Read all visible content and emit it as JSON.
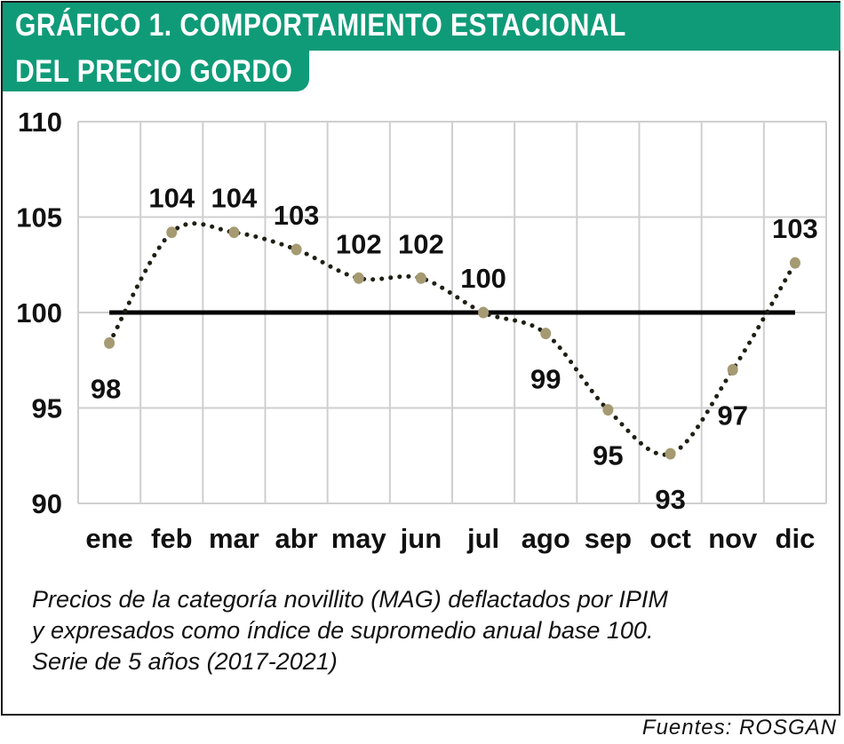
{
  "header": {
    "title_line_1": "GRÁFICO 1. COMPORTAMIENTO ESTACIONAL",
    "title_line_2": "DEL PRECIO GORDO"
  },
  "caption": {
    "line_1": "Precios de la categoría novillito (MAG) deflactados por IPIM",
    "line_2": "y expresados como índice de supromedio anual base 100.",
    "line_3": "Serie de 5 años (2017-2021)"
  },
  "source": "Fuentes: ROSGAN",
  "colors": {
    "title_band": "#0f9b78",
    "series_dots": "#1f1f14",
    "markers": "#a59a72",
    "baseline": "#000000",
    "grid": "#cfcfcf"
  },
  "chart_data": {
    "type": "line",
    "categories": [
      "ene",
      "feb",
      "mar",
      "abr",
      "may",
      "jun",
      "jul",
      "ago",
      "sep",
      "oct",
      "nov",
      "dic"
    ],
    "values": [
      98.4,
      104.2,
      104.2,
      103.3,
      101.8,
      101.8,
      100.0,
      98.9,
      94.9,
      92.6,
      97.0,
      102.6
    ],
    "data_labels": [
      "98",
      "104",
      "104",
      "103",
      "102",
      "102",
      "100",
      "99",
      "95",
      "93",
      "97",
      "103"
    ],
    "label_position": [
      "below",
      "above",
      "above",
      "above",
      "above",
      "above",
      "above",
      "below",
      "below",
      "below",
      "below",
      "above"
    ],
    "reference_line": 100,
    "ylim": [
      90,
      110
    ],
    "yticks": [
      90,
      95,
      100,
      105,
      110
    ],
    "grid": true,
    "line_style": "dotted",
    "title": "",
    "xlabel": "",
    "ylabel": ""
  }
}
